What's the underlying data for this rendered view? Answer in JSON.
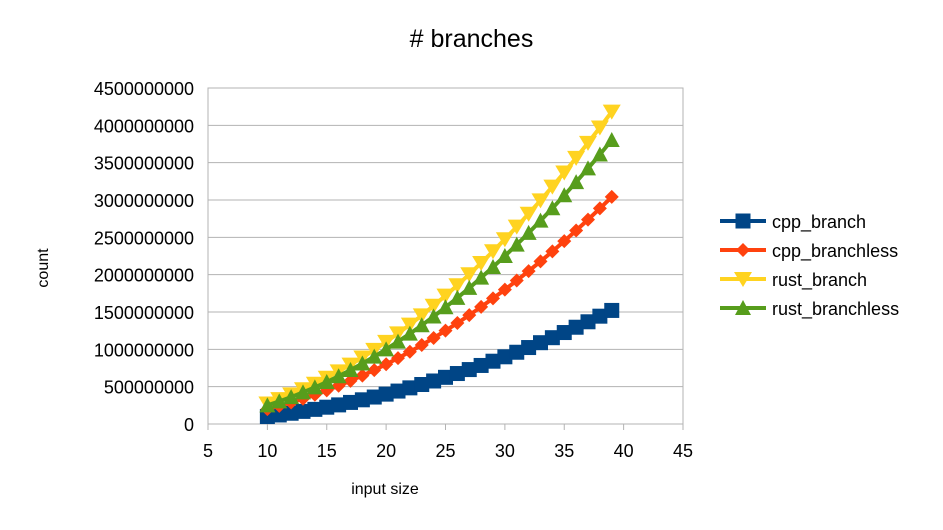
{
  "chart_data": {
    "type": "line",
    "title": "# branches",
    "xlabel": "input size",
    "ylabel": "count",
    "xlim": [
      5,
      45
    ],
    "ylim": [
      0,
      4500000000
    ],
    "xticks": [
      5,
      10,
      15,
      20,
      25,
      30,
      35,
      40,
      45
    ],
    "yticks": [
      0,
      500000000,
      1000000000,
      1500000000,
      2000000000,
      2500000000,
      3000000000,
      3500000000,
      4000000000,
      4500000000
    ],
    "x_tick_labels": [
      "5",
      "10",
      "15",
      "20",
      "25",
      "30",
      "35",
      "40",
      "45"
    ],
    "y_tick_labels": [
      "0",
      "500000000",
      "1000000000",
      "1500000000",
      "2000000000",
      "2500000000",
      "3000000000",
      "3500000000",
      "4000000000",
      "4500000000"
    ],
    "grid": "horizontal",
    "legend_position": "right",
    "x": [
      10,
      11,
      12,
      13,
      14,
      15,
      16,
      17,
      18,
      19,
      20,
      21,
      22,
      23,
      24,
      25,
      26,
      27,
      28,
      29,
      30,
      31,
      32,
      33,
      34,
      35,
      36,
      37,
      38,
      39
    ],
    "series": [
      {
        "name": "cpp_branch",
        "color": "#004586",
        "marker": "square",
        "values": [
          100000000,
          121000000,
          144000000,
          169000000,
          196000000,
          225000000,
          256000000,
          289000000,
          324000000,
          361000000,
          400000000,
          441000000,
          484000000,
          529000000,
          576000000,
          625000000,
          676000000,
          729000000,
          784000000,
          841000000,
          900000000,
          961000000,
          1024000000,
          1089000000,
          1156000000,
          1225000000,
          1296000000,
          1369000000,
          1444000000,
          1521000000
        ]
      },
      {
        "name": "cpp_branchless",
        "color": "#ff420e",
        "marker": "diamond",
        "values": [
          200000000,
          242000000,
          288000000,
          338000000,
          392000000,
          450000000,
          512000000,
          578000000,
          648000000,
          722000000,
          800000000,
          882000000,
          968000000,
          1058000000,
          1152000000,
          1250000000,
          1352000000,
          1458000000,
          1568000000,
          1682000000,
          1800000000,
          1922000000,
          2048000000,
          2178000000,
          2312000000,
          2450000000,
          2592000000,
          2738000000,
          2888000000,
          3042000000
        ]
      },
      {
        "name": "rust_branch",
        "color": "#ffd320",
        "marker": "triangle-down",
        "values": [
          275000000,
          333000000,
          396000000,
          465000000,
          539000000,
          619000000,
          704000000,
          795000000,
          891000000,
          993000000,
          1100000000,
          1213000000,
          1331000000,
          1455000000,
          1584000000,
          1719000000,
          1859000000,
          2005000000,
          2156000000,
          2313000000,
          2475000000,
          2643000000,
          2816000000,
          2995000000,
          3179000000,
          3369000000,
          3564000000,
          3765000000,
          3971000000,
          4183000000
        ]
      },
      {
        "name": "rust_branchless",
        "color": "#579d1c",
        "marker": "triangle-up",
        "values": [
          250000000,
          303000000,
          360000000,
          423000000,
          490000000,
          563000000,
          640000000,
          723000000,
          810000000,
          903000000,
          1000000000,
          1103000000,
          1210000000,
          1323000000,
          1440000000,
          1563000000,
          1690000000,
          1823000000,
          1960000000,
          2103000000,
          2250000000,
          2403000000,
          2560000000,
          2723000000,
          2890000000,
          3063000000,
          3240000000,
          3423000000,
          3610000000,
          3803000000
        ]
      }
    ]
  }
}
